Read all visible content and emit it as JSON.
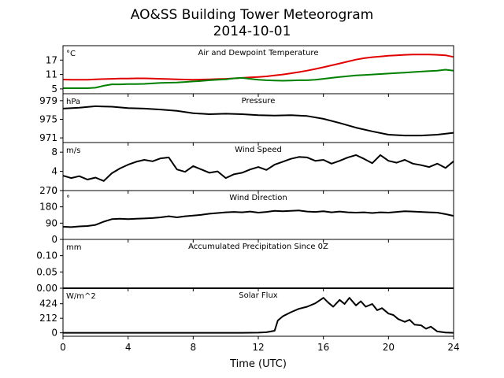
{
  "chart_data": {
    "type": "line",
    "title": "AO&SS Building Tower Meteorogram",
    "subtitle": "2014-10-01",
    "xlabel": "Time (UTC)",
    "xlim": [
      0,
      24
    ],
    "xticks": [
      "0",
      "4",
      "8",
      "12",
      "16",
      "20",
      "24"
    ],
    "panels": [
      {
        "title": "Air and Dewpoint Temperature",
        "unit": "°C",
        "ylim": [
          3,
          23
        ],
        "yticks": [
          "5",
          "11",
          "17"
        ],
        "series": [
          {
            "color": "#e00000",
            "x": [
              0,
              0.5,
              1,
              1.5,
              2,
              2.5,
              3,
              3.5,
              4,
              4.5,
              5,
              5.5,
              6,
              6.5,
              7,
              7.5,
              8,
              8.5,
              9,
              9.5,
              10,
              10.5,
              11,
              11.5,
              12,
              12.5,
              13,
              13.5,
              14,
              14.5,
              15,
              15.5,
              16,
              16.5,
              17,
              17.5,
              18,
              18.5,
              19,
              19.5,
              20,
              20.5,
              21,
              21.5,
              22,
              22.5,
              23,
              23.5,
              24
            ],
            "values": [
              8.9,
              8.8,
              8.8,
              8.8,
              9.0,
              9.1,
              9.2,
              9.3,
              9.3,
              9.4,
              9.4,
              9.3,
              9.2,
              9.1,
              9.0,
              8.9,
              8.8,
              8.9,
              9.0,
              9.1,
              9.2,
              9.4,
              9.6,
              9.8,
              10.0,
              10.2,
              10.6,
              11.0,
              11.5,
              12.0,
              12.6,
              13.3,
              14.0,
              14.8,
              15.6,
              16.4,
              17.2,
              17.8,
              18.2,
              18.5,
              18.8,
              19.0,
              19.2,
              19.3,
              19.3,
              19.3,
              19.2,
              19.0,
              18.3
            ]
          },
          {
            "color": "#008000",
            "x": [
              0,
              0.5,
              1,
              1.5,
              2,
              2.5,
              3,
              3.5,
              4,
              4.5,
              5,
              5.5,
              6,
              6.5,
              7,
              7.5,
              8,
              8.5,
              9,
              9.5,
              10,
              10.5,
              11,
              11.5,
              12,
              12.5,
              13,
              13.5,
              14,
              14.5,
              15,
              15.5,
              16,
              16.5,
              17,
              17.5,
              18,
              18.5,
              19,
              19.5,
              20,
              20.5,
              21,
              21.5,
              22,
              22.5,
              23,
              23.5,
              24
            ],
            "values": [
              5.3,
              5.3,
              5.3,
              5.3,
              5.5,
              6.3,
              6.9,
              6.9,
              7.0,
              7.0,
              7.1,
              7.3,
              7.5,
              7.6,
              7.7,
              7.9,
              8.1,
              8.3,
              8.6,
              8.8,
              9.0,
              9.4,
              9.6,
              9.2,
              8.8,
              8.6,
              8.5,
              8.4,
              8.5,
              8.6,
              8.6,
              8.8,
              9.2,
              9.6,
              10.0,
              10.3,
              10.6,
              10.8,
              11.0,
              11.2,
              11.4,
              11.6,
              11.8,
              12.0,
              12.2,
              12.4,
              12.6,
              13.0,
              12.6
            ]
          }
        ]
      },
      {
        "title": "Pressure",
        "unit": "hPa",
        "ylim": [
          970,
          980.5
        ],
        "yticks": [
          "971",
          "975",
          "979"
        ],
        "series": [
          {
            "color": "#000000",
            "x": [
              0,
              1,
              2,
              3,
              4,
              5,
              6,
              7,
              8,
              9,
              10,
              11,
              12,
              13,
              14,
              15,
              16,
              17,
              18,
              19,
              20,
              21,
              22,
              23,
              24
            ],
            "values": [
              977.3,
              977.5,
              977.8,
              977.7,
              977.4,
              977.3,
              977.1,
              976.8,
              976.3,
              976.1,
              976.2,
              976.1,
              975.9,
              975.8,
              975.9,
              975.7,
              975.1,
              974.2,
              973.2,
              972.4,
              971.7,
              971.5,
              971.5,
              971.7,
              972.1
            ]
          }
        ]
      },
      {
        "title": "Wind Speed",
        "unit": "m/s",
        "ylim": [
          0,
          10
        ],
        "yticks": [
          "0",
          "4",
          "8"
        ],
        "series": [
          {
            "color": "#000000",
            "x": [
              0,
              0.5,
              1,
              1.5,
              2,
              2.5,
              3,
              3.5,
              4,
              4.5,
              5,
              5.5,
              6,
              6.5,
              7,
              7.5,
              8,
              8.5,
              9,
              9.5,
              10,
              10.5,
              11,
              11.5,
              12,
              12.5,
              13,
              13.5,
              14,
              14.5,
              15,
              15.5,
              16,
              16.5,
              17,
              17.5,
              18,
              18.5,
              19,
              19.5,
              20,
              20.5,
              21,
              21.5,
              22,
              22.5,
              23,
              23.5,
              24
            ],
            "values": [
              3.1,
              2.6,
              3.0,
              2.3,
              2.7,
              2.0,
              3.6,
              4.6,
              5.4,
              6.0,
              6.4,
              6.1,
              6.7,
              6.9,
              4.4,
              3.9,
              5.1,
              4.4,
              3.7,
              4.0,
              2.6,
              3.4,
              3.7,
              4.4,
              4.9,
              4.3,
              5.4,
              6.0,
              6.6,
              7.0,
              6.9,
              6.2,
              6.4,
              5.6,
              6.2,
              6.9,
              7.4,
              6.6,
              5.7,
              7.4,
              6.2,
              5.8,
              6.4,
              5.6,
              5.3,
              4.9,
              5.6,
              4.7,
              6.1
            ]
          }
        ]
      },
      {
        "title": "Wind Direction",
        "unit": "°",
        "ylim": [
          0,
          270
        ],
        "yticks": [
          "0",
          "90",
          "180",
          "270"
        ],
        "series": [
          {
            "color": "#000000",
            "x": [
              0,
              0.5,
              1,
              1.5,
              2,
              2.5,
              3,
              3.5,
              4,
              4.5,
              5,
              5.5,
              6,
              6.5,
              7,
              7.5,
              8,
              8.5,
              9,
              9.5,
              10,
              10.5,
              11,
              11.5,
              12,
              12.5,
              13,
              13.5,
              14,
              14.5,
              15,
              15.5,
              16,
              16.5,
              17,
              17.5,
              18,
              18.5,
              19,
              19.5,
              20,
              20.5,
              21,
              21.5,
              22,
              22.5,
              23,
              23.5,
              24
            ],
            "values": [
              70,
              68,
              72,
              74,
              80,
              98,
              112,
              114,
              112,
              114,
              116,
              118,
              122,
              128,
              122,
              128,
              132,
              136,
              142,
              146,
              150,
              152,
              150,
              154,
              148,
              152,
              158,
              156,
              158,
              160,
              154,
              152,
              156,
              150,
              154,
              150,
              148,
              150,
              146,
              150,
              148,
              152,
              156,
              154,
              152,
              150,
              148,
              140,
              130
            ]
          }
        ]
      },
      {
        "title": "Accumulated Precipitation Since 0Z",
        "unit": "mm",
        "ylim": [
          0,
          0.15
        ],
        "yticks": [
          "0.00",
          "0.05",
          "0.10"
        ],
        "series": [
          {
            "color": "#000000",
            "x": [
              0,
              24
            ],
            "values": [
              0,
              0
            ]
          }
        ]
      },
      {
        "title": "Solar Flux",
        "unit": "W/m^2",
        "ylim": [
          -50,
          650
        ],
        "yticks": [
          "0",
          "212",
          "424"
        ],
        "series": [
          {
            "color": "#000000",
            "x": [
              0,
              6,
              11,
              12,
              12.5,
              13,
              13.2,
              13.5,
              14,
              14.5,
              15,
              15.5,
              16,
              16.3,
              16.6,
              17,
              17.3,
              17.6,
              18,
              18.3,
              18.6,
              19,
              19.3,
              19.6,
              20,
              20.3,
              20.6,
              21,
              21.3,
              21.6,
              22,
              22.3,
              22.6,
              23,
              23.5,
              24
            ],
            "values": [
              0,
              0,
              0,
              3,
              8,
              30,
              180,
              240,
              300,
              350,
              380,
              430,
              510,
              440,
              380,
              480,
              420,
              510,
              400,
              460,
              380,
              420,
              330,
              360,
              280,
              260,
              200,
              160,
              190,
              120,
              110,
              60,
              90,
              20,
              5,
              0
            ]
          }
        ]
      }
    ]
  }
}
